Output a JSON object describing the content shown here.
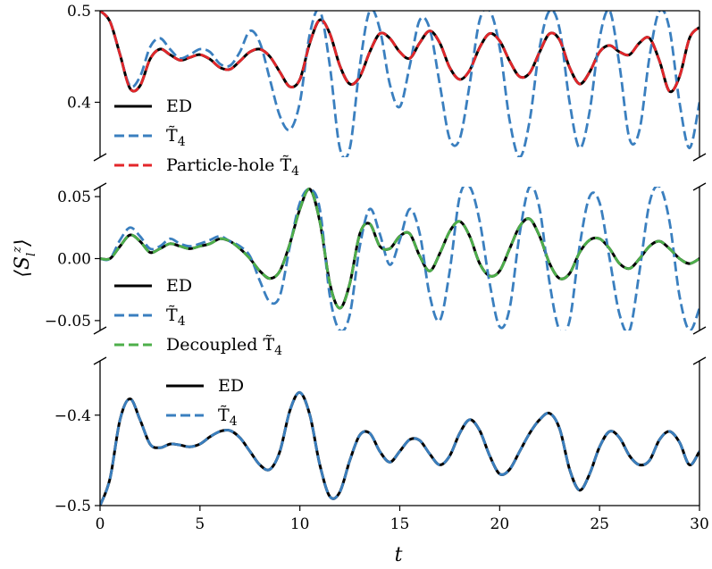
{
  "figure": {
    "ylabel": "⟨S_l^z⟩",
    "xlabel": "t",
    "xlim": [
      0,
      30
    ],
    "x_ticks": [
      "0",
      "5",
      "10",
      "15",
      "20",
      "25",
      "30"
    ]
  },
  "chart_data": [
    {
      "type": "line",
      "panel": "top",
      "ylim": [
        0.34,
        0.5
      ],
      "y_ticks": [
        {
          "value": 0.4,
          "label": "0.4"
        },
        {
          "value": 0.5,
          "label": "0.5"
        }
      ],
      "legend_position": "lower-left",
      "x_samples": [
        0.0,
        0.5,
        1.0,
        1.5,
        2.0,
        2.5,
        3.0,
        3.5,
        4.0,
        4.5,
        5.0,
        5.5,
        6.0,
        6.5,
        7.0,
        7.5,
        8.0,
        8.5,
        9.0,
        9.5,
        10.0,
        10.5,
        11.0,
        11.5,
        12.0,
        12.5,
        13.0,
        13.5,
        14.0,
        14.5,
        15.0,
        15.5,
        16.0,
        16.5,
        17.0,
        17.5,
        18.0,
        18.5,
        19.0,
        19.5,
        20.0,
        20.5,
        21.0,
        21.5,
        22.0,
        22.5,
        23.0,
        23.5,
        24.0,
        24.5,
        25.0,
        25.5,
        26.0,
        26.5,
        27.0,
        27.5,
        28.0,
        28.5,
        29.0,
        29.5,
        30.0
      ],
      "series": [
        {
          "name": "ED",
          "color": "#000000",
          "style": "solid",
          "values": [
            0.5,
            0.488,
            0.452,
            0.415,
            0.418,
            0.447,
            0.458,
            0.452,
            0.446,
            0.449,
            0.452,
            0.447,
            0.438,
            0.436,
            0.445,
            0.455,
            0.458,
            0.45,
            0.433,
            0.417,
            0.425,
            0.465,
            0.49,
            0.475,
            0.44,
            0.42,
            0.428,
            0.455,
            0.475,
            0.47,
            0.455,
            0.448,
            0.465,
            0.478,
            0.465,
            0.438,
            0.425,
            0.435,
            0.46,
            0.475,
            0.467,
            0.445,
            0.428,
            0.432,
            0.455,
            0.475,
            0.468,
            0.438,
            0.42,
            0.433,
            0.455,
            0.462,
            0.455,
            0.452,
            0.465,
            0.47,
            0.445,
            0.412,
            0.428,
            0.47,
            0.482
          ]
        },
        {
          "name": "T̃₄",
          "color": "#3a7fbf",
          "style": "dashed",
          "values": [
            0.5,
            0.488,
            0.452,
            0.418,
            0.428,
            0.46,
            0.47,
            0.458,
            0.448,
            0.452,
            0.458,
            0.455,
            0.442,
            0.44,
            0.455,
            0.478,
            0.465,
            0.425,
            0.385,
            0.37,
            0.4,
            0.475,
            0.5,
            0.44,
            0.35,
            0.35,
            0.44,
            0.5,
            0.48,
            0.42,
            0.395,
            0.44,
            0.49,
            0.48,
            0.42,
            0.36,
            0.36,
            0.42,
            0.49,
            0.5,
            0.46,
            0.38,
            0.34,
            0.38,
            0.46,
            0.5,
            0.48,
            0.4,
            0.35,
            0.39,
            0.47,
            0.5,
            0.44,
            0.36,
            0.37,
            0.45,
            0.5,
            0.48,
            0.4,
            0.35,
            0.4
          ]
        },
        {
          "name": "Particle-hole T̃₄",
          "color": "#e3262a",
          "style": "dashed",
          "values": [
            0.5,
            0.488,
            0.452,
            0.415,
            0.418,
            0.447,
            0.458,
            0.452,
            0.446,
            0.449,
            0.452,
            0.447,
            0.438,
            0.436,
            0.445,
            0.455,
            0.458,
            0.45,
            0.433,
            0.417,
            0.425,
            0.465,
            0.49,
            0.475,
            0.44,
            0.42,
            0.428,
            0.455,
            0.475,
            0.47,
            0.455,
            0.448,
            0.465,
            0.478,
            0.465,
            0.438,
            0.425,
            0.435,
            0.46,
            0.475,
            0.467,
            0.445,
            0.428,
            0.432,
            0.455,
            0.475,
            0.468,
            0.438,
            0.42,
            0.433,
            0.455,
            0.462,
            0.455,
            0.452,
            0.465,
            0.47,
            0.445,
            0.412,
            0.428,
            0.47,
            0.482
          ]
        }
      ]
    },
    {
      "type": "line",
      "panel": "middle",
      "ylim": [
        -0.058,
        0.058
      ],
      "y_ticks": [
        {
          "value": 0.05,
          "label": "0.05"
        },
        {
          "value": 0.0,
          "label": "0.00"
        },
        {
          "value": -0.05,
          "label": "−0.05"
        }
      ],
      "legend_position": "lower-left",
      "x_samples": [
        0.0,
        0.5,
        1.0,
        1.5,
        2.0,
        2.5,
        3.0,
        3.5,
        4.0,
        4.5,
        5.0,
        5.5,
        6.0,
        6.5,
        7.0,
        7.5,
        8.0,
        8.5,
        9.0,
        9.5,
        10.0,
        10.5,
        11.0,
        11.5,
        12.0,
        12.5,
        13.0,
        13.5,
        14.0,
        14.5,
        15.0,
        15.5,
        16.0,
        16.5,
        17.0,
        17.5,
        18.0,
        18.5,
        19.0,
        19.5,
        20.0,
        20.5,
        21.0,
        21.5,
        22.0,
        22.5,
        23.0,
        23.5,
        24.0,
        24.5,
        25.0,
        25.5,
        26.0,
        26.5,
        27.0,
        27.5,
        28.0,
        28.5,
        29.0,
        29.5,
        30.0
      ],
      "series": [
        {
          "name": "ED",
          "color": "#000000",
          "style": "solid",
          "values": [
            0.0,
            0.0,
            0.01,
            0.019,
            0.014,
            0.005,
            0.008,
            0.012,
            0.01,
            0.008,
            0.01,
            0.012,
            0.016,
            0.014,
            0.008,
            0.0,
            -0.01,
            -0.016,
            -0.01,
            0.012,
            0.04,
            0.056,
            0.03,
            -0.02,
            -0.04,
            -0.02,
            0.02,
            0.028,
            0.01,
            0.008,
            0.018,
            0.02,
            0.002,
            -0.01,
            0.004,
            0.022,
            0.03,
            0.018,
            -0.004,
            -0.014,
            -0.01,
            0.008,
            0.026,
            0.032,
            0.018,
            -0.004,
            -0.016,
            -0.012,
            0.005,
            0.015,
            0.016,
            0.008,
            -0.004,
            -0.008,
            0.0,
            0.01,
            0.014,
            0.008,
            0.0,
            -0.004,
            0.0
          ]
        },
        {
          "name": "T̃₄",
          "color": "#3a7fbf",
          "style": "dashed",
          "values": [
            0.0,
            0.0,
            0.015,
            0.025,
            0.018,
            0.008,
            0.01,
            0.016,
            0.012,
            0.01,
            0.012,
            0.015,
            0.018,
            0.014,
            0.01,
            0.002,
            -0.018,
            -0.035,
            -0.03,
            0.01,
            0.045,
            0.056,
            0.04,
            -0.03,
            -0.058,
            -0.045,
            0.01,
            0.04,
            0.02,
            -0.005,
            0.015,
            0.04,
            0.02,
            -0.03,
            -0.05,
            -0.01,
            0.05,
            0.058,
            0.03,
            -0.02,
            -0.055,
            -0.04,
            0.02,
            0.058,
            0.04,
            -0.02,
            -0.058,
            -0.05,
            0.01,
            0.05,
            0.045,
            0.0,
            -0.045,
            -0.058,
            -0.01,
            0.045,
            0.058,
            0.03,
            -0.03,
            -0.058,
            -0.04
          ]
        },
        {
          "name": "Decoupled T̃₄",
          "color": "#4daf4a",
          "style": "dashed",
          "values": [
            0.0,
            0.0,
            0.01,
            0.019,
            0.014,
            0.005,
            0.008,
            0.012,
            0.01,
            0.008,
            0.01,
            0.012,
            0.016,
            0.014,
            0.008,
            0.0,
            -0.01,
            -0.016,
            -0.01,
            0.012,
            0.04,
            0.056,
            0.03,
            -0.02,
            -0.04,
            -0.02,
            0.02,
            0.028,
            0.01,
            0.008,
            0.018,
            0.02,
            0.002,
            -0.01,
            0.004,
            0.022,
            0.03,
            0.018,
            -0.004,
            -0.014,
            -0.01,
            0.008,
            0.026,
            0.032,
            0.018,
            -0.004,
            -0.016,
            -0.012,
            0.005,
            0.015,
            0.016,
            0.008,
            -0.004,
            -0.008,
            0.0,
            0.01,
            0.014,
            0.008,
            0.0,
            -0.004,
            0.0
          ]
        }
      ]
    },
    {
      "type": "line",
      "panel": "bottom",
      "ylim": [
        -0.5,
        -0.34
      ],
      "y_ticks": [
        {
          "value": -0.4,
          "label": "−0.4"
        },
        {
          "value": -0.5,
          "label": "−0.5"
        }
      ],
      "legend_position": "upper-left",
      "x_samples": [
        0.0,
        0.5,
        1.0,
        1.5,
        2.0,
        2.5,
        3.0,
        3.5,
        4.0,
        4.5,
        5.0,
        5.5,
        6.0,
        6.5,
        7.0,
        7.5,
        8.0,
        8.5,
        9.0,
        9.5,
        10.0,
        10.5,
        11.0,
        11.5,
        12.0,
        12.5,
        13.0,
        13.5,
        14.0,
        14.5,
        15.0,
        15.5,
        16.0,
        16.5,
        17.0,
        17.5,
        18.0,
        18.5,
        19.0,
        19.5,
        20.0,
        20.5,
        21.0,
        21.5,
        22.0,
        22.5,
        23.0,
        23.5,
        24.0,
        24.5,
        25.0,
        25.5,
        26.0,
        26.5,
        27.0,
        27.5,
        28.0,
        28.5,
        29.0,
        29.5,
        30.0
      ],
      "series": [
        {
          "name": "ED",
          "color": "#000000",
          "style": "solid",
          "values": [
            -0.5,
            -0.47,
            -0.405,
            -0.382,
            -0.405,
            -0.432,
            -0.436,
            -0.432,
            -0.433,
            -0.435,
            -0.432,
            -0.424,
            -0.418,
            -0.417,
            -0.425,
            -0.44,
            -0.455,
            -0.46,
            -0.44,
            -0.395,
            -0.375,
            -0.4,
            -0.455,
            -0.49,
            -0.485,
            -0.45,
            -0.422,
            -0.42,
            -0.44,
            -0.452,
            -0.44,
            -0.427,
            -0.428,
            -0.443,
            -0.455,
            -0.445,
            -0.42,
            -0.405,
            -0.417,
            -0.445,
            -0.465,
            -0.46,
            -0.44,
            -0.42,
            -0.405,
            -0.398,
            -0.415,
            -0.46,
            -0.483,
            -0.465,
            -0.435,
            -0.418,
            -0.425,
            -0.445,
            -0.455,
            -0.45,
            -0.427,
            -0.418,
            -0.43,
            -0.455,
            -0.44
          ]
        },
        {
          "name": "T̃₄",
          "color": "#3a7fbf",
          "style": "dashed",
          "values": [
            -0.5,
            -0.47,
            -0.405,
            -0.382,
            -0.405,
            -0.432,
            -0.436,
            -0.432,
            -0.433,
            -0.435,
            -0.432,
            -0.424,
            -0.418,
            -0.417,
            -0.425,
            -0.44,
            -0.455,
            -0.46,
            -0.44,
            -0.395,
            -0.375,
            -0.4,
            -0.455,
            -0.49,
            -0.485,
            -0.45,
            -0.422,
            -0.42,
            -0.44,
            -0.452,
            -0.44,
            -0.427,
            -0.428,
            -0.443,
            -0.455,
            -0.445,
            -0.42,
            -0.405,
            -0.417,
            -0.445,
            -0.465,
            -0.46,
            -0.44,
            -0.42,
            -0.405,
            -0.398,
            -0.415,
            -0.46,
            -0.483,
            -0.465,
            -0.435,
            -0.418,
            -0.425,
            -0.445,
            -0.455,
            -0.45,
            -0.427,
            -0.418,
            -0.43,
            -0.455,
            -0.44
          ]
        }
      ]
    }
  ]
}
